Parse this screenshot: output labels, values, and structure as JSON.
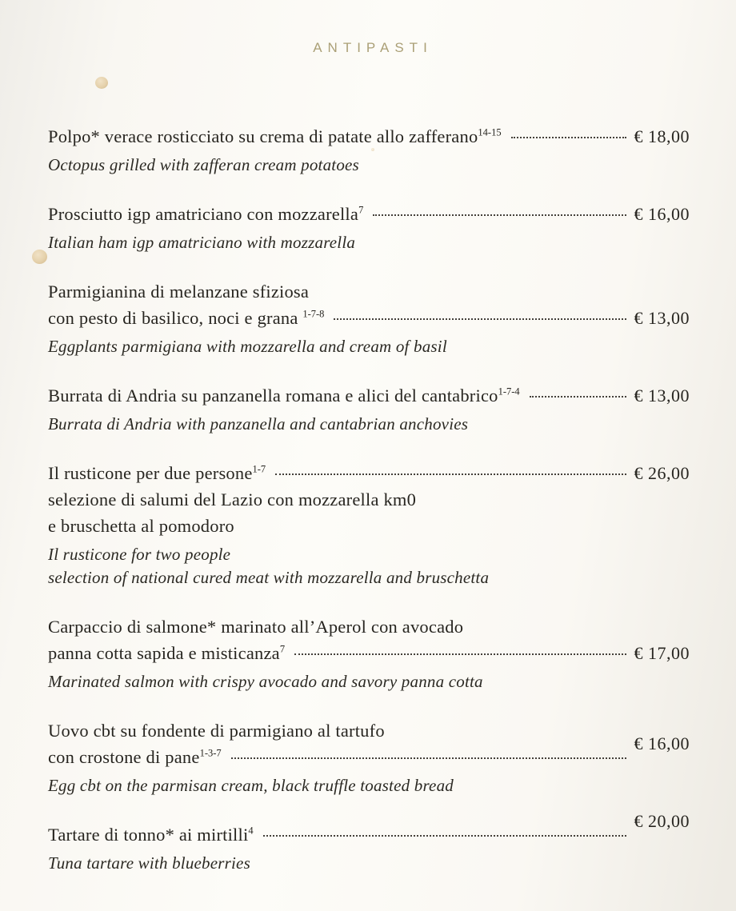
{
  "menu": {
    "section_title": "ANTIPASTI",
    "currency": "EUR",
    "items": [
      {
        "lines_it": [
          "Polpo* verace rosticciato su crema  di patate allo zafferano"
        ],
        "allergens": "14-15",
        "price": "€ 18,00",
        "lines_en": [
          "Octopus grilled with zafferan cream potatoes"
        ]
      },
      {
        "lines_it": [
          "Prosciutto igp amatriciano con mozzarella"
        ],
        "allergens": "7",
        "price": "€ 16,00",
        "lines_en": [
          "Italian ham igp amatriciano with mozzarella"
        ]
      },
      {
        "lines_it": [
          "Parmigianina di melanzane sfiziosa",
          "con pesto di basilico, noci e grana "
        ],
        "allergens": "1-7-8",
        "price": "€ 13,00",
        "lines_en": [
          "Eggplants parmigiana with mozzarella and cream of basil"
        ]
      },
      {
        "lines_it": [
          "Burrata di Andria su panzanella romana e alici del cantabrico"
        ],
        "allergens": "1-7-4",
        "price": "€ 13,00",
        "lines_en": [
          "Burrata di Andria with panzanella and cantabrian anchovies"
        ]
      },
      {
        "lines_it": [
          "Il rusticone per due persone",
          "selezione di salumi del Lazio con mozzarella km0",
          "e bruschetta al pomodoro"
        ],
        "allergens": "1-7",
        "price": "€ 26,00",
        "lines_en": [
          "Il rusticone for two people",
          "selection of  national cured meat with mozzarella and bruschetta"
        ]
      },
      {
        "lines_it": [
          "Carpaccio di salmone* marinato all’Aperol con avocado",
          "panna cotta sapida  e misticanza"
        ],
        "allergens": "7",
        "price": "€ 17,00",
        "lines_en": [
          "Marinated salmon with crispy avocado and savory panna cotta"
        ]
      },
      {
        "lines_it": [
          "Uovo cbt su  fondente di parmigiano al tartufo",
          "con crostone di pane"
        ],
        "allergens": "1-3-7",
        "price": "€ 16,00",
        "lines_en": [
          "Egg cbt on the parmisan cream, black truffle toasted bread"
        ]
      },
      {
        "lines_it": [
          "Tartare di tonno* ai mirtilli"
        ],
        "allergens": "4",
        "price": "€ 20,00",
        "lines_en": [
          "Tuna tartare with blueberries"
        ]
      }
    ]
  },
  "colors": {
    "title": "#aba077",
    "text": "#272520",
    "paper": "#fbf9f4"
  }
}
